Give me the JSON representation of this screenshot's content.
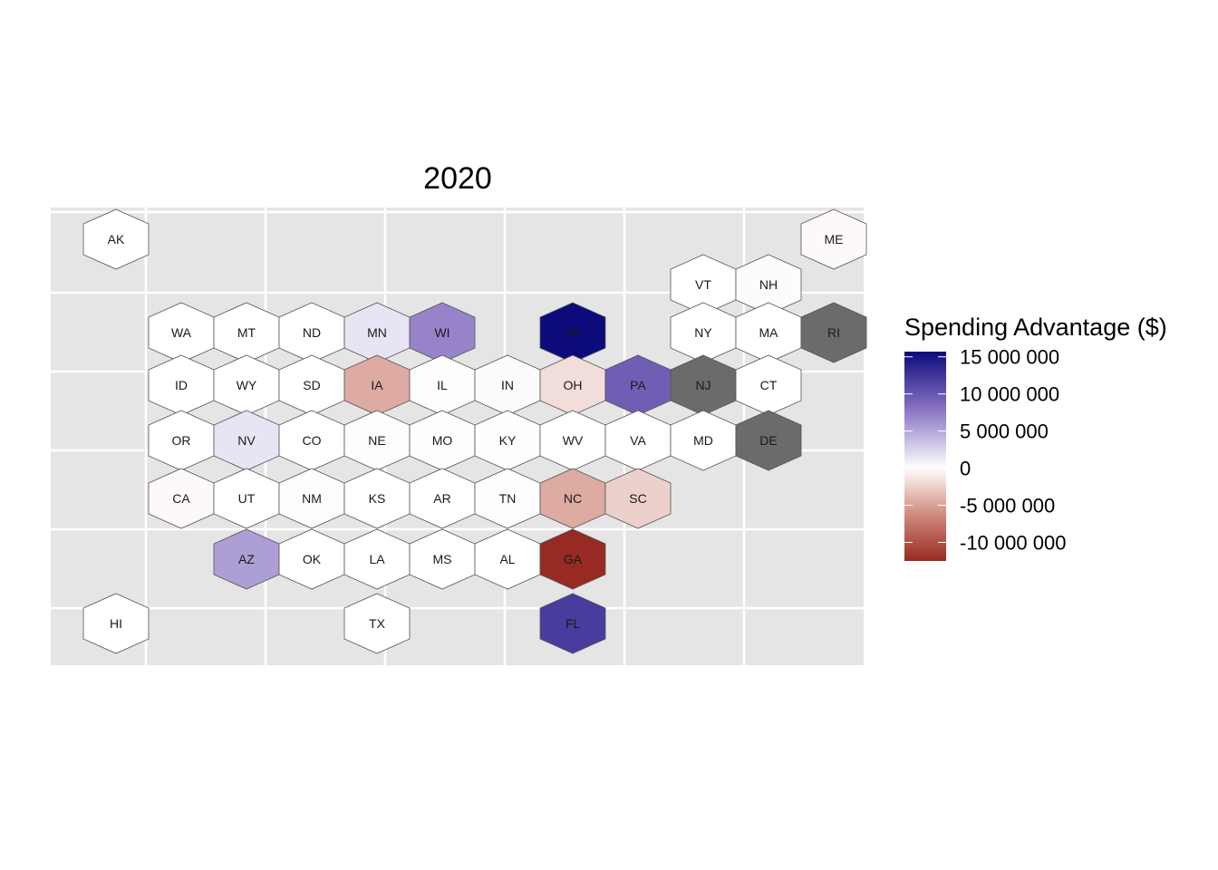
{
  "title": "2020",
  "legend": {
    "title": "Spending Advantage ($)",
    "breaks": [
      {
        "value": 15000000,
        "label": "15 000 000"
      },
      {
        "value": 10000000,
        "label": "10 000 000"
      },
      {
        "value": 5000000,
        "label": "5 000 000"
      },
      {
        "value": 0,
        "label": "0"
      },
      {
        "value": -5000000,
        "label": "-5 000 000"
      },
      {
        "value": -10000000,
        "label": "-10 000 000"
      }
    ],
    "range": [
      -12500000,
      15700000
    ],
    "colors": {
      "high": "#0d0a7c",
      "mid": "#ffffff",
      "low": "#972a22",
      "na": "#6b6b6b"
    }
  },
  "chart_data": {
    "type": "heatmap",
    "title": "2020",
    "value_name": "Spending Advantage ($)",
    "states": [
      {
        "abbr": "AK",
        "value": 0
      },
      {
        "abbr": "ME",
        "value": -300000
      },
      {
        "abbr": "VT",
        "value": 0
      },
      {
        "abbr": "NH",
        "value": 200000
      },
      {
        "abbr": "WA",
        "value": 0
      },
      {
        "abbr": "MT",
        "value": 0
      },
      {
        "abbr": "ND",
        "value": 0
      },
      {
        "abbr": "MN",
        "value": 1500000
      },
      {
        "abbr": "WI",
        "value": 7000000
      },
      {
        "abbr": "MI",
        "value": 15700000
      },
      {
        "abbr": "NY",
        "value": 0
      },
      {
        "abbr": "MA",
        "value": 0
      },
      {
        "abbr": "RI",
        "value": null
      },
      {
        "abbr": "ID",
        "value": 0
      },
      {
        "abbr": "WY",
        "value": 0
      },
      {
        "abbr": "SD",
        "value": 0
      },
      {
        "abbr": "IA",
        "value": -4500000
      },
      {
        "abbr": "IL",
        "value": -100000
      },
      {
        "abbr": "IN",
        "value": 300000
      },
      {
        "abbr": "OH",
        "value": -1800000
      },
      {
        "abbr": "PA",
        "value": 9500000
      },
      {
        "abbr": "NJ",
        "value": null
      },
      {
        "abbr": "CT",
        "value": 0
      },
      {
        "abbr": "OR",
        "value": 0
      },
      {
        "abbr": "NV",
        "value": 1500000
      },
      {
        "abbr": "CO",
        "value": 0
      },
      {
        "abbr": "NE",
        "value": -150000
      },
      {
        "abbr": "MO",
        "value": -100000
      },
      {
        "abbr": "KY",
        "value": -50000
      },
      {
        "abbr": "WV",
        "value": 0
      },
      {
        "abbr": "VA",
        "value": 0
      },
      {
        "abbr": "MD",
        "value": 0
      },
      {
        "abbr": "DE",
        "value": null
      },
      {
        "abbr": "CA",
        "value": -300000
      },
      {
        "abbr": "UT",
        "value": 0
      },
      {
        "abbr": "NM",
        "value": -150000
      },
      {
        "abbr": "KS",
        "value": 0
      },
      {
        "abbr": "AR",
        "value": 0
      },
      {
        "abbr": "TN",
        "value": -100000
      },
      {
        "abbr": "NC",
        "value": -4500000
      },
      {
        "abbr": "SC",
        "value": -2500000
      },
      {
        "abbr": "AZ",
        "value": 5500000
      },
      {
        "abbr": "OK",
        "value": 0
      },
      {
        "abbr": "LA",
        "value": 0
      },
      {
        "abbr": "MS",
        "value": 0
      },
      {
        "abbr": "AL",
        "value": 0
      },
      {
        "abbr": "GA",
        "value": -12500000
      },
      {
        "abbr": "HI",
        "value": 0
      },
      {
        "abbr": "TX",
        "value": 0
      },
      {
        "abbr": "FL",
        "value": 12000000
      }
    ]
  }
}
